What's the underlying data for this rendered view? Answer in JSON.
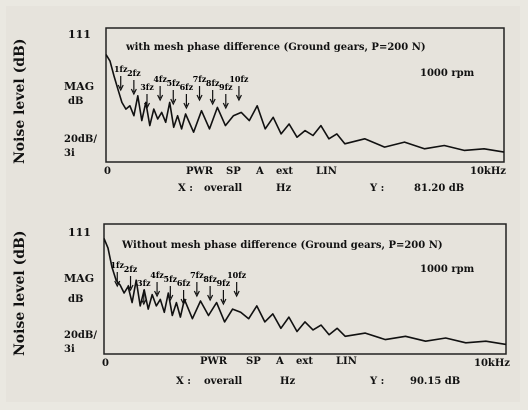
{
  "y_axis_label": "Noise level (dB)",
  "chart_data": [
    {
      "type": "line",
      "title": "with mesh phase difference (Ground gears, P=200 N)",
      "speed": "1000 rpm",
      "y_top_tick": "111",
      "y_mid_label": "MAG",
      "y_unit": "dB",
      "y_scale": "20dB/",
      "y_scale_div": "3i",
      "x_start": "0",
      "x_end": "10kHz",
      "controls": [
        "PWR",
        "SP",
        "A",
        "ext",
        "LIN"
      ],
      "x_readout_label": "X :",
      "x_readout_value": "overall",
      "x_unit": "Hz",
      "y_readout_label": "Y :",
      "y_readout_value": "81.20 dB",
      "series": [
        {
          "x": [
            0,
            100,
            200,
            300,
            400,
            500,
            600,
            700,
            800,
            900,
            1000,
            1100,
            1200,
            1300,
            1400,
            1500,
            1600,
            1700,
            1800,
            1900,
            2000,
            2200,
            2400,
            2600,
            2800,
            3000,
            3200,
            3400,
            3600,
            3800,
            4000,
            4200,
            4400,
            4600,
            4800,
            5000,
            5200,
            5400,
            5600,
            5800,
            6000,
            6500,
            7000,
            7500,
            8000,
            8500,
            9000,
            9500,
            10000
          ],
          "y": [
            95,
            91,
            82,
            74,
            66,
            62,
            64,
            58,
            70,
            55,
            66,
            52,
            62,
            56,
            60,
            54,
            66,
            51,
            58,
            50,
            59,
            48,
            61,
            50,
            63,
            52,
            58,
            60,
            55,
            64,
            50,
            57,
            47,
            53,
            45,
            49,
            46,
            52,
            44,
            47,
            41,
            44,
            39,
            42,
            38,
            40,
            37,
            38,
            36
          ]
        }
      ],
      "harmonics": [
        "1fz",
        "2fz",
        "3fz",
        "4fz",
        "5fz",
        "6fz",
        "7fz",
        "8fz",
        "9fz",
        "10fz"
      ]
    },
    {
      "type": "line",
      "title": "Without mesh phase difference (Ground gears, P=200 N)",
      "speed": "1000 rpm",
      "y_top_tick": "111",
      "y_mid_label": "MAG",
      "y_unit": "dB",
      "y_scale": "20dB/",
      "y_scale_div": "3i",
      "x_start": "0",
      "x_end": "10kHz",
      "controls": [
        "PWR",
        "SP",
        "A",
        "ext",
        "LIN"
      ],
      "x_readout_label": "X :",
      "x_readout_value": "overall",
      "x_unit": "Hz",
      "y_readout_label": "Y :",
      "y_readout_value": "90.15 dB",
      "series": [
        {
          "x": [
            0,
            100,
            200,
            300,
            400,
            500,
            600,
            700,
            800,
            900,
            1000,
            1100,
            1200,
            1300,
            1400,
            1500,
            1600,
            1700,
            1800,
            1900,
            2000,
            2200,
            2400,
            2600,
            2800,
            3000,
            3200,
            3400,
            3600,
            3800,
            4000,
            4200,
            4400,
            4600,
            4800,
            5000,
            5200,
            5400,
            5600,
            5800,
            6000,
            6500,
            7000,
            7500,
            8000,
            8500,
            9000,
            9500,
            10000
          ],
          "y": [
            102,
            96,
            84,
            76,
            73,
            68,
            72,
            62,
            76,
            60,
            70,
            58,
            67,
            60,
            64,
            56,
            68,
            54,
            62,
            53,
            64,
            52,
            63,
            54,
            62,
            50,
            58,
            56,
            52,
            60,
            50,
            55,
            46,
            53,
            44,
            50,
            45,
            48,
            42,
            46,
            41,
            43,
            39,
            41,
            38,
            40,
            37,
            38,
            36
          ]
        }
      ],
      "harmonics": [
        "1fz",
        "2fz",
        "3fz",
        "4fz",
        "5fz",
        "6fz",
        "7fz",
        "8fz",
        "9fz",
        "10fz"
      ]
    }
  ]
}
